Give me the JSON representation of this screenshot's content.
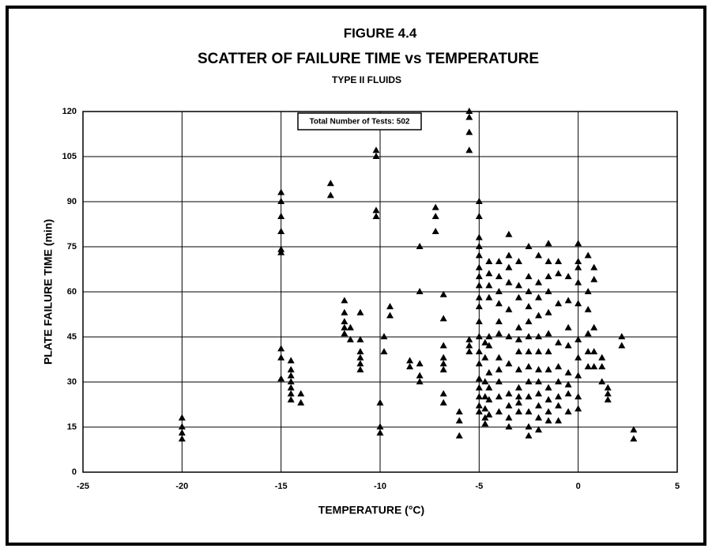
{
  "chart_data": {
    "type": "scatter",
    "title": "FIGURE 4.4",
    "subtitle": "SCATTER OF FAILURE TIME vs TEMPERATURE",
    "subtitle2": "TYPE II FLUIDS",
    "xlabel": "TEMPERATURE (°C)",
    "ylabel": "PLATE FAILURE TIME (min)",
    "annotation": "Total Number of Tests: 502",
    "xlim": [
      -25,
      5
    ],
    "xticks": [
      -25,
      -20,
      -15,
      -10,
      -5,
      0,
      5
    ],
    "ylim": [
      0,
      120
    ],
    "yticks": [
      0,
      15,
      30,
      45,
      60,
      75,
      90,
      105,
      120
    ],
    "grid": true,
    "series": [
      {
        "color": "#000000",
        "x": [
          -20,
          -20,
          -20,
          -20,
          -15,
          -15,
          -15,
          -15,
          -15,
          -15,
          -15,
          -15,
          -15,
          -14.5,
          -14.5,
          -14.5,
          -14.5,
          -14.5,
          -14.5,
          -14.5,
          -14,
          -14,
          -12.5,
          -12.5,
          -11.8,
          -11.8,
          -11.8,
          -11.8,
          -11.8,
          -11.5,
          -11.5,
          -11,
          -11,
          -11,
          -11,
          -11,
          -11,
          -10.2,
          -10.2,
          -10.2,
          -10.2,
          -10,
          -10,
          -10,
          -9.8,
          -9.8,
          -9.5,
          -9.5,
          -8.5,
          -8.5,
          -8,
          -8,
          -8,
          -8,
          -8,
          -7.2,
          -7.2,
          -7.2,
          -6.8,
          -6.8,
          -6.8,
          -6.8,
          -6.8,
          -6.8,
          -6.8,
          -6.8,
          -6,
          -6,
          -6,
          -5.5,
          -5.5,
          -5.5,
          -5.5,
          -5.5,
          -5.5,
          -5.5,
          -5,
          -5,
          -5,
          -5,
          -5,
          -5,
          -5,
          -5,
          -5,
          -5,
          -5,
          -5,
          -5,
          -5,
          -5,
          -5,
          -5,
          -5,
          -5,
          -4.7,
          -4.7,
          -4.7,
          -4.7,
          -4.7,
          -4.7,
          -4.7,
          -4.5,
          -4.5,
          -4.5,
          -4.5,
          -4.5,
          -4.5,
          -4.5,
          -4.5,
          -4.5,
          -4.5,
          -4,
          -4,
          -4,
          -4,
          -4,
          -4,
          -4,
          -4,
          -4,
          -4,
          -4,
          -3.5,
          -3.5,
          -3.5,
          -3.5,
          -3.5,
          -3.5,
          -3.5,
          -3.5,
          -3.5,
          -3.5,
          -3.5,
          -3,
          -3,
          -3,
          -3,
          -3,
          -3,
          -3,
          -3,
          -3,
          -3,
          -3,
          -2.5,
          -2.5,
          -2.5,
          -2.5,
          -2.5,
          -2.5,
          -2.5,
          -2.5,
          -2.5,
          -2.5,
          -2.5,
          -2.5,
          -2.5,
          -2,
          -2,
          -2,
          -2,
          -2,
          -2,
          -2,
          -2,
          -2,
          -2,
          -2,
          -2,
          -1.5,
          -1.5,
          -1.5,
          -1.5,
          -1.5,
          -1.5,
          -1.5,
          -1.5,
          -1.5,
          -1.5,
          -1.5,
          -1.5,
          -1,
          -1,
          -1,
          -1,
          -1,
          -1,
          -1,
          -1,
          -1,
          -0.5,
          -0.5,
          -0.5,
          -0.5,
          -0.5,
          -0.5,
          -0.5,
          -0.5,
          0,
          0,
          0,
          0,
          0,
          0,
          0,
          0,
          0,
          0,
          0.5,
          0.5,
          0.5,
          0.5,
          0.5,
          0.5,
          0.8,
          0.8,
          0.8,
          0.8,
          0.8,
          1.2,
          1.2,
          1.2,
          1.5,
          1.5,
          1.5,
          2.2,
          2.2,
          2.8,
          2.8
        ],
        "values": [
          11,
          13,
          15,
          18,
          31,
          38,
          41,
          73,
          74,
          80,
          85,
          90,
          93,
          24,
          26,
          28,
          30,
          32,
          34,
          37,
          23,
          26,
          92,
          96,
          57,
          53,
          50,
          48,
          46,
          48,
          44,
          53,
          44,
          40,
          38,
          36,
          34,
          107,
          105,
          87,
          85,
          23,
          15,
          13,
          45,
          40,
          55,
          52,
          37,
          35,
          75,
          60,
          36,
          32,
          30,
          88,
          85,
          80,
          59,
          51,
          42,
          38,
          36,
          34,
          26,
          23,
          20,
          17,
          12,
          120,
          118,
          113,
          107,
          44,
          42,
          40,
          90,
          85,
          78,
          75,
          72,
          68,
          65,
          62,
          58,
          55,
          50,
          45,
          40,
          36,
          31,
          28,
          25,
          22,
          20,
          43,
          38,
          30,
          25,
          21,
          18,
          16,
          70,
          66,
          62,
          58,
          45,
          42,
          33,
          28,
          24,
          19,
          70,
          65,
          60,
          56,
          50,
          46,
          38,
          34,
          30,
          25,
          20,
          79,
          72,
          68,
          63,
          54,
          45,
          36,
          26,
          22,
          18,
          15,
          70,
          62,
          58,
          48,
          44,
          40,
          34,
          28,
          25,
          23,
          20,
          75,
          65,
          60,
          55,
          50,
          45,
          40,
          35,
          30,
          25,
          20,
          15,
          12,
          72,
          63,
          58,
          52,
          45,
          40,
          34,
          30,
          26,
          22,
          18,
          14,
          76,
          70,
          65,
          60,
          53,
          46,
          40,
          34,
          28,
          24,
          20,
          17,
          70,
          66,
          56,
          43,
          35,
          30,
          25,
          22,
          17,
          65,
          57,
          48,
          42,
          33,
          29,
          26,
          20,
          76,
          70,
          68,
          63,
          56,
          44,
          38,
          32,
          25,
          21,
          72,
          60,
          54,
          46,
          40,
          35,
          68,
          64,
          48,
          40,
          35,
          38,
          35,
          30,
          28,
          26,
          24,
          45,
          42,
          14,
          11
        ]
      }
    ]
  }
}
